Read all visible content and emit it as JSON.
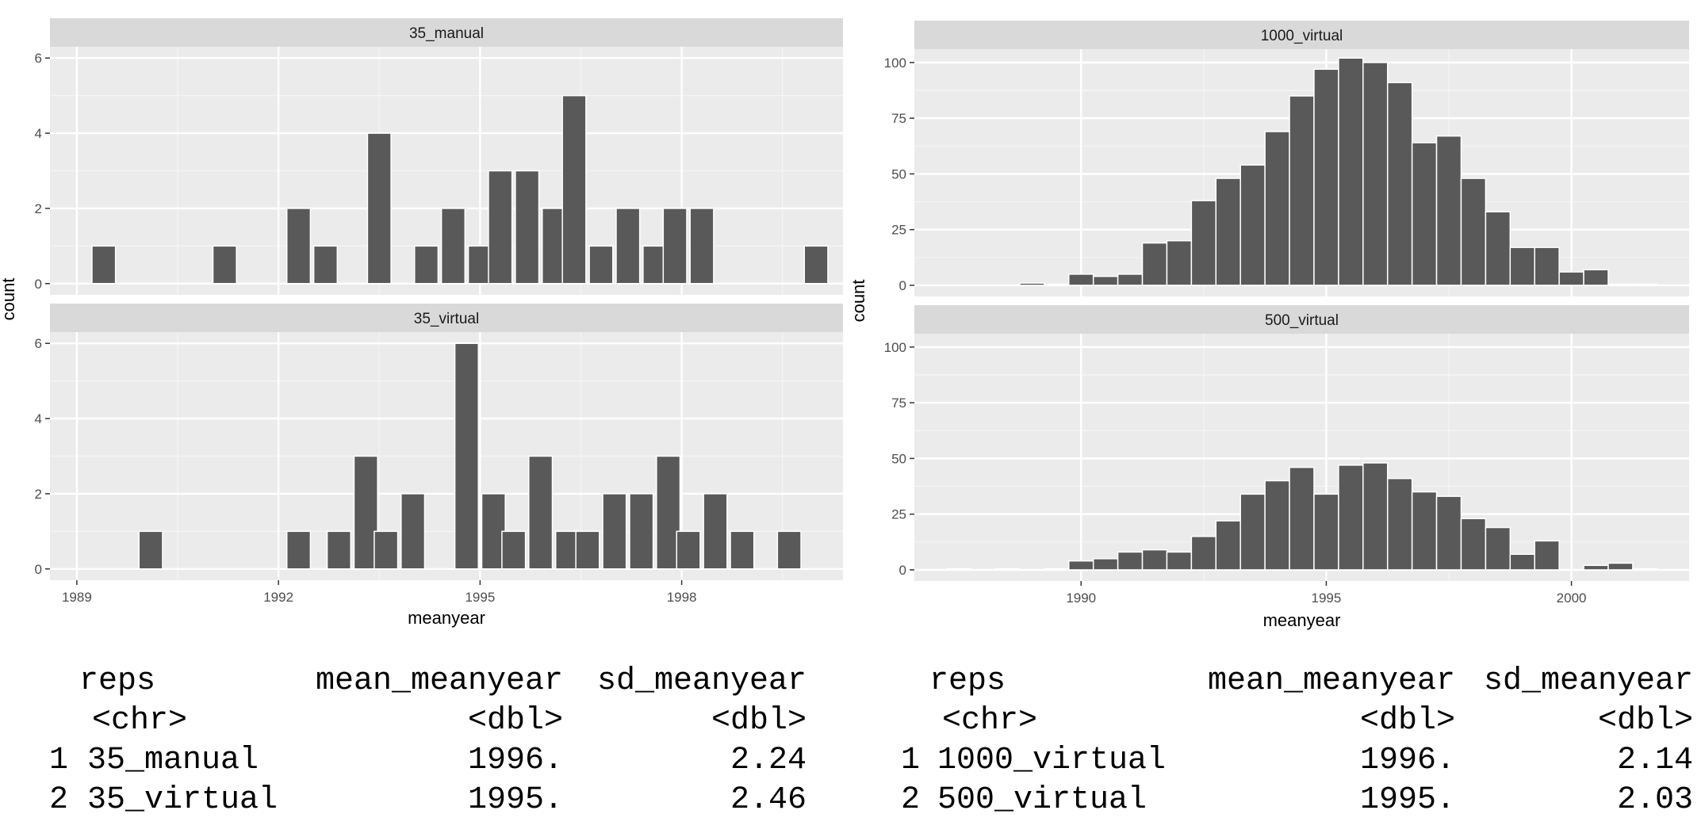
{
  "chart_data": [
    {
      "type": "bar",
      "xlabel": "meanyear",
      "ylabel": "count",
      "xlim": [
        1988.6,
        2000.4
      ],
      "x_ticks": [
        "1989",
        "1992",
        "1995",
        "1998"
      ],
      "grid": true,
      "facets": [
        {
          "name": "35_manual",
          "ylim": [
            -0.3,
            6.3
          ],
          "y_ticks": [
            "0",
            "2",
            "4",
            "6"
          ],
          "bins": [
            {
              "x": 1989.4,
              "count": 1
            },
            {
              "x": 1991.2,
              "count": 1
            },
            {
              "x": 1992.3,
              "count": 2
            },
            {
              "x": 1992.7,
              "count": 1
            },
            {
              "x": 1993.5,
              "count": 4
            },
            {
              "x": 1994.2,
              "count": 1
            },
            {
              "x": 1994.6,
              "count": 2
            },
            {
              "x": 1995.0,
              "count": 1
            },
            {
              "x": 1995.3,
              "count": 3
            },
            {
              "x": 1995.7,
              "count": 3
            },
            {
              "x": 1996.1,
              "count": 2
            },
            {
              "x": 1996.4,
              "count": 5
            },
            {
              "x": 1996.8,
              "count": 1
            },
            {
              "x": 1997.2,
              "count": 2
            },
            {
              "x": 1997.6,
              "count": 1
            },
            {
              "x": 1997.9,
              "count": 2
            },
            {
              "x": 1998.3,
              "count": 2
            },
            {
              "x": 2000.0,
              "count": 1
            }
          ]
        },
        {
          "name": "35_virtual",
          "ylim": [
            -0.3,
            6.3
          ],
          "y_ticks": [
            "0",
            "2",
            "4",
            "6"
          ],
          "bins": [
            {
              "x": 1990.1,
              "count": 1
            },
            {
              "x": 1992.3,
              "count": 1
            },
            {
              "x": 1992.9,
              "count": 1
            },
            {
              "x": 1993.3,
              "count": 3
            },
            {
              "x": 1993.6,
              "count": 1
            },
            {
              "x": 1994.0,
              "count": 2
            },
            {
              "x": 1994.8,
              "count": 6
            },
            {
              "x": 1995.2,
              "count": 2
            },
            {
              "x": 1995.5,
              "count": 1
            },
            {
              "x": 1995.9,
              "count": 3
            },
            {
              "x": 1996.3,
              "count": 1
            },
            {
              "x": 1996.6,
              "count": 1
            },
            {
              "x": 1997.0,
              "count": 2
            },
            {
              "x": 1997.4,
              "count": 2
            },
            {
              "x": 1997.8,
              "count": 3
            },
            {
              "x": 1998.1,
              "count": 1
            },
            {
              "x": 1998.5,
              "count": 2
            },
            {
              "x": 1998.9,
              "count": 1
            },
            {
              "x": 1999.6,
              "count": 1
            }
          ]
        }
      ]
    },
    {
      "type": "bar",
      "xlabel": "meanyear",
      "ylabel": "count",
      "xlim": [
        1986.6,
        2002.4
      ],
      "x_ticks": [
        "1990",
        "1995",
        "2000"
      ],
      "grid": true,
      "facets": [
        {
          "name": "1000_virtual",
          "ylim": [
            -5,
            106
          ],
          "y_ticks": [
            "0",
            "25",
            "50",
            "75",
            "100"
          ],
          "bins": [
            {
              "x": 1989.0,
              "count": 1
            },
            {
              "x": 1989.5,
              "count": 0.5
            },
            {
              "x": 1990.0,
              "count": 5
            },
            {
              "x": 1990.5,
              "count": 4
            },
            {
              "x": 1991.0,
              "count": 5
            },
            {
              "x": 1991.5,
              "count": 19
            },
            {
              "x": 1992.0,
              "count": 20
            },
            {
              "x": 1992.5,
              "count": 38
            },
            {
              "x": 1993.0,
              "count": 48
            },
            {
              "x": 1993.5,
              "count": 54
            },
            {
              "x": 1994.0,
              "count": 69
            },
            {
              "x": 1994.5,
              "count": 85
            },
            {
              "x": 1995.0,
              "count": 97
            },
            {
              "x": 1995.5,
              "count": 102
            },
            {
              "x": 1996.0,
              "count": 100
            },
            {
              "x": 1996.5,
              "count": 91
            },
            {
              "x": 1997.0,
              "count": 64
            },
            {
              "x": 1997.5,
              "count": 67
            },
            {
              "x": 1998.0,
              "count": 48
            },
            {
              "x": 1998.5,
              "count": 33
            },
            {
              "x": 1999.0,
              "count": 17
            },
            {
              "x": 1999.5,
              "count": 17
            },
            {
              "x": 2000.0,
              "count": 6
            },
            {
              "x": 2000.5,
              "count": 7
            },
            {
              "x": 2001.0,
              "count": 0.5
            },
            {
              "x": 2001.5,
              "count": 0.5
            }
          ]
        },
        {
          "name": "500_virtual",
          "ylim": [
            -5,
            106
          ],
          "y_ticks": [
            "0",
            "25",
            "50",
            "75",
            "100"
          ],
          "bins": [
            {
              "x": 1987.5,
              "count": 0.5
            },
            {
              "x": 1988.5,
              "count": 0.5
            },
            {
              "x": 1989.5,
              "count": 0.5
            },
            {
              "x": 1990.0,
              "count": 4
            },
            {
              "x": 1990.5,
              "count": 5
            },
            {
              "x": 1991.0,
              "count": 8
            },
            {
              "x": 1991.5,
              "count": 9
            },
            {
              "x": 1992.0,
              "count": 8
            },
            {
              "x": 1992.5,
              "count": 15
            },
            {
              "x": 1993.0,
              "count": 22
            },
            {
              "x": 1993.5,
              "count": 34
            },
            {
              "x": 1994.0,
              "count": 40
            },
            {
              "x": 1994.5,
              "count": 46
            },
            {
              "x": 1995.0,
              "count": 34
            },
            {
              "x": 1995.5,
              "count": 47
            },
            {
              "x": 1996.0,
              "count": 48
            },
            {
              "x": 1996.5,
              "count": 41
            },
            {
              "x": 1997.0,
              "count": 35
            },
            {
              "x": 1997.5,
              "count": 33
            },
            {
              "x": 1998.0,
              "count": 23
            },
            {
              "x": 1998.5,
              "count": 19
            },
            {
              "x": 1999.0,
              "count": 7
            },
            {
              "x": 1999.5,
              "count": 13
            },
            {
              "x": 2000.5,
              "count": 2
            },
            {
              "x": 2001.0,
              "count": 3
            },
            {
              "x": 2001.5,
              "count": 0.5
            }
          ]
        }
      ]
    }
  ],
  "tables": [
    {
      "header": [
        "reps",
        "mean_meanyear",
        "sd_meanyear"
      ],
      "types": [
        "<chr>",
        "<dbl>",
        "<dbl>"
      ],
      "rows": [
        {
          "idx": "1",
          "reps": "35_manual",
          "mean": "1996.",
          "sd": "2.24"
        },
        {
          "idx": "2",
          "reps": "35_virtual",
          "mean": "1995.",
          "sd": "2.46"
        }
      ]
    },
    {
      "header": [
        "reps",
        "mean_meanyear",
        "sd_meanyear"
      ],
      "types": [
        "<chr>",
        "<dbl>",
        "<dbl>"
      ],
      "rows": [
        {
          "idx": "1",
          "reps": "1000_virtual",
          "mean": "1996.",
          "sd": "2.14"
        },
        {
          "idx": "2",
          "reps": "500_virtual",
          "mean": "1995.",
          "sd": "2.03"
        }
      ]
    }
  ]
}
